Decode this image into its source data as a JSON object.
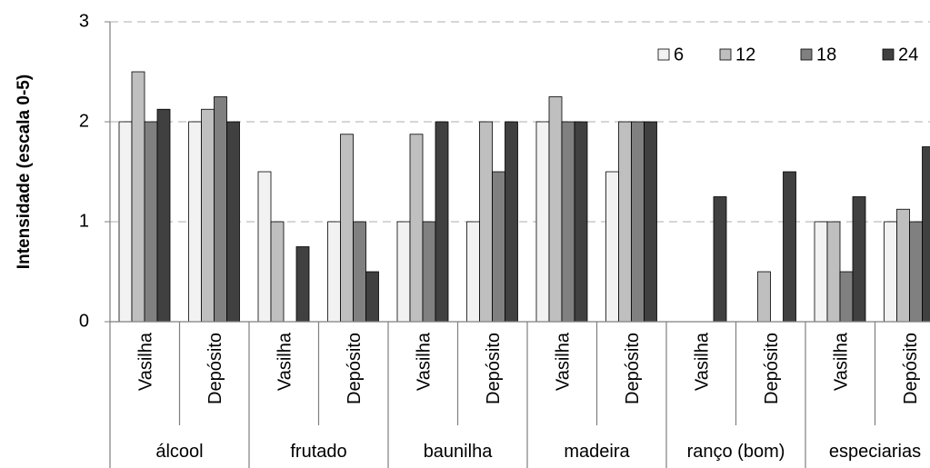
{
  "chart_data": {
    "type": "bar",
    "title": "",
    "xlabel": "",
    "ylabel": "Intensidade (escala 0-5)",
    "ylim": [
      0,
      3
    ],
    "yticks": [
      "0",
      "1",
      "2",
      "3"
    ],
    "grid": true,
    "legend_position": "top-right",
    "groups": [
      "álcool",
      "frutado",
      "baunilha",
      "madeira",
      "ranço (bom)",
      "especiarias"
    ],
    "subcategories": [
      "Vasilha",
      "Depósito"
    ],
    "categories": [
      "álcool / Vasilha",
      "álcool / Depósito",
      "frutado / Vasilha",
      "frutado / Depósito",
      "baunilha / Vasilha",
      "baunilha / Depósito",
      "madeira / Vasilha",
      "madeira / Depósito",
      "ranço (bom) / Vasilha",
      "ranço (bom) / Depósito",
      "especiarias / Vasilha",
      "especiarias / Depósito"
    ],
    "series": [
      {
        "name": "6",
        "color": "#f2f2f2",
        "values": [
          2.0,
          2.0,
          1.5,
          1.0,
          1.0,
          1.0,
          2.0,
          1.5,
          0,
          0,
          1.0,
          1.0
        ]
      },
      {
        "name": "12",
        "color": "#bfbfbf",
        "values": [
          2.5,
          2.125,
          1.0,
          1.875,
          1.875,
          2.0,
          2.25,
          2.0,
          0,
          0.5,
          1.0,
          1.125
        ]
      },
      {
        "name": "18",
        "color": "#808080",
        "values": [
          2.0,
          2.25,
          0,
          1.0,
          1.0,
          1.5,
          2.0,
          2.0,
          0,
          0,
          0.5,
          1.0
        ]
      },
      {
        "name": "24",
        "color": "#404040",
        "values": [
          2.125,
          2.0,
          0.75,
          0.5,
          2.0,
          2.0,
          2.0,
          2.0,
          1.25,
          1.5,
          1.25,
          1.75
        ]
      }
    ]
  }
}
